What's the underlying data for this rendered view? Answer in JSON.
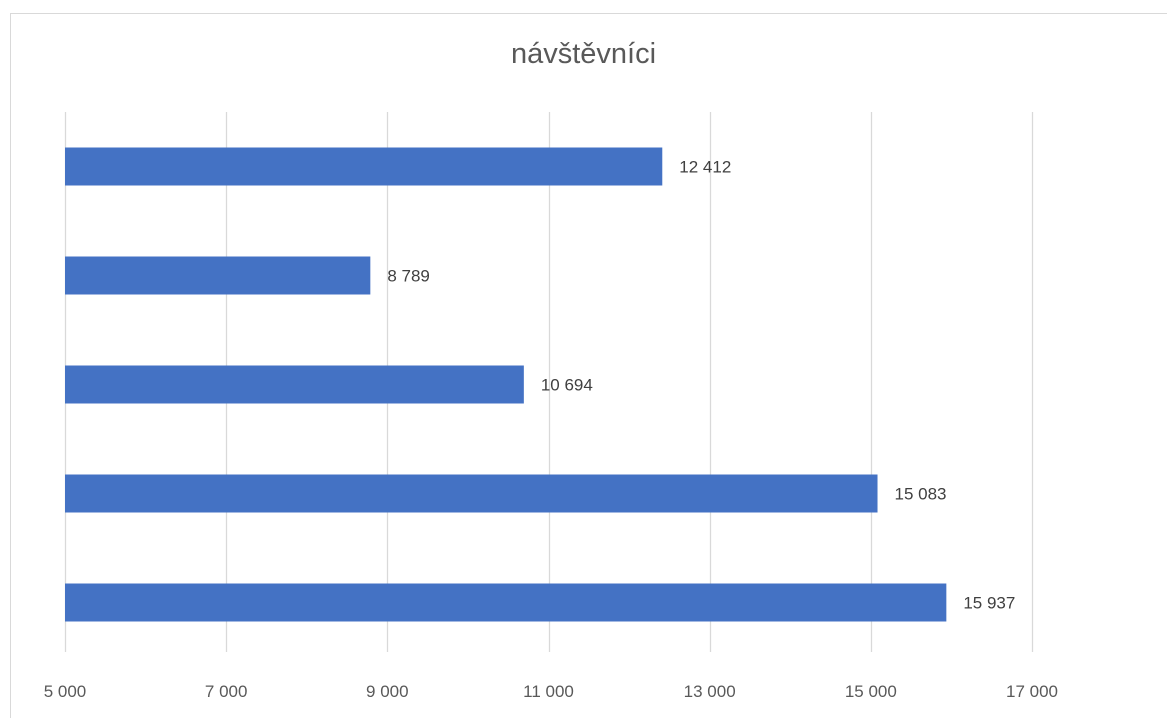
{
  "chart_data": {
    "type": "bar",
    "orientation": "horizontal",
    "title": "návštěvníci",
    "xlabel": "",
    "ylabel": "",
    "categories": [
      "",
      "",
      "",
      "",
      ""
    ],
    "values": [
      12412,
      8789,
      10694,
      15083,
      15937
    ],
    "data_labels": [
      "12 412",
      "8 789",
      "10 694",
      "15 083",
      "15 937"
    ],
    "xlim": [
      5000,
      17000
    ],
    "x_ticks": [
      5000,
      7000,
      9000,
      11000,
      13000,
      15000,
      17000
    ],
    "x_tick_labels": [
      "5 000",
      "7 000",
      "9 000",
      "11 000",
      "13 000",
      "15 000",
      "17 000"
    ],
    "grid": "vertical",
    "legend": "none",
    "bar_color": "#4472c4",
    "grid_color": "#d9d9d9"
  }
}
